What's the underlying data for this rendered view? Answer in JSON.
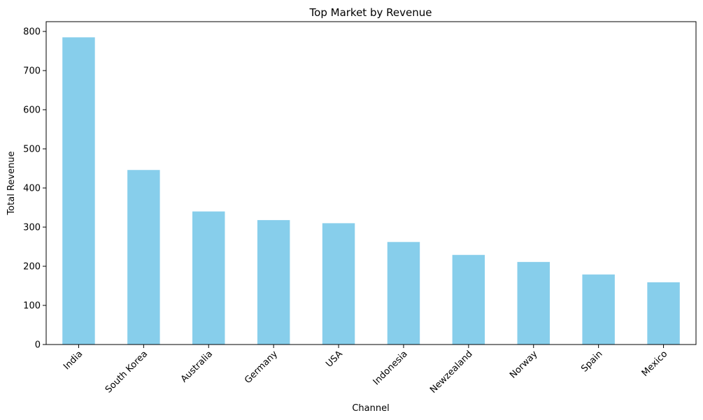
{
  "chart_data": {
    "type": "bar",
    "title": "Top Market by Revenue",
    "xlabel": "Channel",
    "ylabel": "Total Revenue",
    "categories": [
      "India",
      "South Korea",
      "Australia",
      "Germany",
      "USA",
      "Indonesia",
      "Newzealand",
      "Norway",
      "Spain",
      "Mexico"
    ],
    "values": [
      785,
      446,
      340,
      318,
      310,
      262,
      229,
      211,
      179,
      159
    ],
    "ylim": [
      0,
      825
    ],
    "yticks": [
      0,
      100,
      200,
      300,
      400,
      500,
      600,
      700,
      800
    ],
    "bar_color": "#87CEEB",
    "grid": false,
    "legend": "none"
  }
}
